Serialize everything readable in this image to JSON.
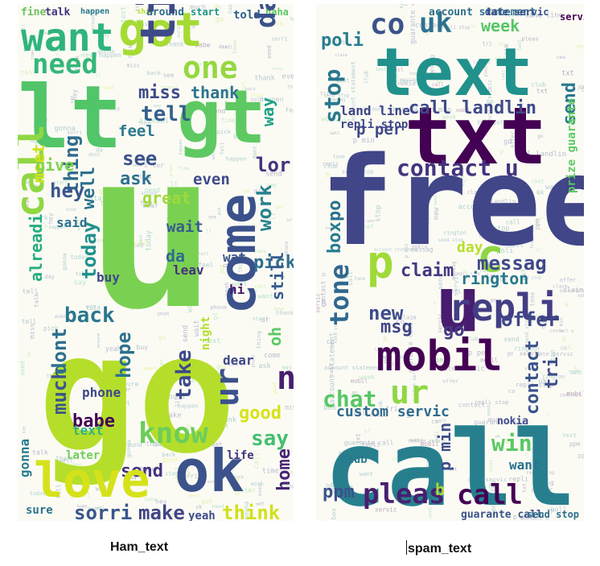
{
  "panels": [
    {
      "id": "ham",
      "caption": "Ham_text",
      "words": [
        {
          "text": "fine",
          "c": "#6fbf62",
          "r": 0
        },
        {
          "text": "talk",
          "c": "#44317f",
          "r": 0
        },
        {
          "text": "happen",
          "c": "#2a788e",
          "r": 0
        },
        {
          "text": "shit",
          "c": "#b8de29",
          "r": 0
        },
        {
          "text": "around",
          "c": "#2c6d8e",
          "r": 0
        },
        {
          "text": "start",
          "c": "#1f958b",
          "r": 0
        },
        {
          "text": "told",
          "c": "#2e5f8d",
          "r": 0
        },
        {
          "text": "haha",
          "c": "#5ec962",
          "r": 0
        },
        {
          "text": "want",
          "c": "#2fb47c",
          "r": 0
        },
        {
          "text": "got",
          "c": "#a6db34",
          "r": 0
        },
        {
          "text": "need",
          "c": "#35b779",
          "r": 0
        },
        {
          "text": "one",
          "c": "#95d840",
          "r": 0
        },
        {
          "text": "day",
          "c": "#3b518b",
          "r": 90
        },
        {
          "text": "lt",
          "c": "#52c569",
          "r": 0
        },
        {
          "text": "gt",
          "c": "#5ec962",
          "r": 0
        },
        {
          "text": "miss",
          "c": "#3e4a89",
          "r": 0
        },
        {
          "text": "thank",
          "c": "#2b748e",
          "r": 0
        },
        {
          "text": "time",
          "c": "#3e4989",
          "r": 90
        },
        {
          "text": "tell",
          "c": "#35608d",
          "r": 0
        },
        {
          "text": "call",
          "c": "#90d743",
          "r": 90
        },
        {
          "text": "meet",
          "c": "#d2e21b",
          "r": 90
        },
        {
          "text": "thing",
          "c": "#2f6c8e",
          "r": 90
        },
        {
          "text": "feel",
          "c": "#2a788e",
          "r": 0
        },
        {
          "text": "see",
          "c": "#3b528b",
          "r": 0
        },
        {
          "text": "ask",
          "c": "#2d708e",
          "r": 0
        },
        {
          "text": "even",
          "c": "#3e4a89",
          "r": 0
        },
        {
          "text": "lor",
          "c": "#46327e",
          "r": 0
        },
        {
          "text": "way",
          "c": "#1fa187",
          "r": 90
        },
        {
          "text": "give",
          "c": "#7fd34e",
          "r": 0
        },
        {
          "text": "hey",
          "c": "#3a548c",
          "r": 0
        },
        {
          "text": "u",
          "c": "#7ad151",
          "r": 0
        },
        {
          "text": "come",
          "c": "#3b518b",
          "r": 90
        },
        {
          "text": "work",
          "c": "#26828e",
          "r": 90
        },
        {
          "text": "today",
          "c": "#21908d",
          "r": 90
        },
        {
          "text": "well",
          "c": "#2c728e",
          "r": 90
        },
        {
          "text": "great",
          "c": "#9fda3a",
          "r": 0
        },
        {
          "text": "said",
          "c": "#2d718e",
          "r": 0
        },
        {
          "text": "alreadi",
          "c": "#27ad81",
          "r": 90
        },
        {
          "text": "wait",
          "c": "#365d8d",
          "r": 0
        },
        {
          "text": "wat",
          "c": "#3b528b",
          "r": 0
        },
        {
          "text": "pick",
          "c": "#2e6e8e",
          "r": 0
        },
        {
          "text": "da",
          "c": "#31688e",
          "r": 0
        },
        {
          "text": "buy",
          "c": "#3f4889",
          "r": 0
        },
        {
          "text": "leav",
          "c": "#46307e",
          "r": 0
        },
        {
          "text": "hi",
          "c": "#481a6c",
          "r": 0
        },
        {
          "text": "back",
          "c": "#2a778e",
          "r": 0
        },
        {
          "text": "still",
          "c": "#365c8d",
          "r": 90
        },
        {
          "text": "oh",
          "c": "#5cc863",
          "r": 90
        },
        {
          "text": "go",
          "c": "#b5de2b",
          "r": 0
        },
        {
          "text": "much",
          "c": "#3a548c",
          "r": 90
        },
        {
          "text": "dont",
          "c": "#2d708e",
          "r": 90
        },
        {
          "text": "babe",
          "c": "#440154",
          "r": 0
        },
        {
          "text": "hope",
          "c": "#2c728e",
          "r": 90
        },
        {
          "text": "take",
          "c": "#3e4a89",
          "r": 90
        },
        {
          "text": "dear",
          "c": "#3f4788",
          "r": 0
        },
        {
          "text": "ur",
          "c": "#3b518b",
          "r": 90
        },
        {
          "text": "n",
          "c": "#481f70",
          "r": 0
        },
        {
          "text": "good",
          "c": "#d8e219",
          "r": 0
        },
        {
          "text": "know",
          "c": "#6ccd5a",
          "r": 0
        },
        {
          "text": "say",
          "c": "#44bf70",
          "r": 0
        },
        {
          "text": "phone",
          "c": "#3f4889",
          "r": 0
        },
        {
          "text": "text",
          "c": "#31b57b",
          "r": 0
        },
        {
          "text": "send",
          "c": "#46337f",
          "r": 0
        },
        {
          "text": "home",
          "c": "#482475",
          "r": 90
        },
        {
          "text": "ok",
          "c": "#3b528b",
          "r": 0
        },
        {
          "text": "love",
          "c": "#d5e21a",
          "r": 0
        },
        {
          "text": "sorri",
          "c": "#39568c",
          "r": 0
        },
        {
          "text": "make",
          "c": "#414487",
          "r": 0
        },
        {
          "text": "think",
          "c": "#d0e11c",
          "r": 0
        },
        {
          "text": "yeah",
          "c": "#3d4e8a",
          "r": 0
        },
        {
          "text": "life",
          "c": "#453781",
          "r": 0
        },
        {
          "text": "later",
          "c": "#6ece58",
          "r": 0
        },
        {
          "text": "gonna",
          "c": "#287c8e",
          "r": 90
        },
        {
          "text": "sure",
          "c": "#2d718e",
          "r": 0
        },
        {
          "text": "night",
          "c": "#b2dd2d",
          "r": 90
        }
      ]
    },
    {
      "id": "spam",
      "caption": "spam_text",
      "words": [
        {
          "text": "account statement",
          "c": "#2e6e8e",
          "r": 0
        },
        {
          "text": "date servic",
          "c": "#3b528b",
          "r": 0
        },
        {
          "text": "servic",
          "c": "#440154",
          "r": 0
        },
        {
          "text": "poli",
          "c": "#287d8e",
          "r": 0
        },
        {
          "text": "co",
          "c": "#3b528b",
          "r": 0
        },
        {
          "text": "uk",
          "c": "#2c728e",
          "r": 0
        },
        {
          "text": "week",
          "c": "#56c667",
          "r": 0
        },
        {
          "text": "text",
          "c": "#21918c",
          "r": 0
        },
        {
          "text": "stop",
          "c": "#2a778e",
          "r": 90
        },
        {
          "text": "txt",
          "c": "#440154",
          "r": 0
        },
        {
          "text": "call landlin",
          "c": "#3e4a89",
          "r": 0
        },
        {
          "text": "land line",
          "c": "#404588",
          "r": 0
        },
        {
          "text": "repli stop",
          "c": "#3f4788",
          "r": 0
        },
        {
          "text": "p per",
          "c": "#3f4889",
          "r": 0
        },
        {
          "text": "send",
          "c": "#2a788e",
          "r": 90
        },
        {
          "text": "contact u",
          "c": "#46337f",
          "r": 0
        },
        {
          "text": "free",
          "c": "#404688",
          "r": 0
        },
        {
          "text": "box",
          "c": "#287c8e",
          "r": 90
        },
        {
          "text": "po",
          "c": "#2c718e",
          "r": 90
        },
        {
          "text": "p",
          "c": "#a0da39",
          "r": 0
        },
        {
          "text": "c",
          "c": "#8fd744",
          "r": 0
        },
        {
          "text": "messag",
          "c": "#3f4889",
          "r": 0
        },
        {
          "text": "claim",
          "c": "#453882",
          "r": 0
        },
        {
          "text": "rington",
          "c": "#2a788e",
          "r": 0
        },
        {
          "text": "tone",
          "c": "#31688e",
          "r": 90
        },
        {
          "text": "u",
          "c": "#481c6e",
          "r": 0
        },
        {
          "text": "repli",
          "c": "#433e85",
          "r": 0
        },
        {
          "text": "new",
          "c": "#3e4c8a",
          "r": 0
        },
        {
          "text": "msg",
          "c": "#3f4788",
          "r": 0
        },
        {
          "text": "go",
          "c": "#443a83",
          "r": 0
        },
        {
          "text": "offer",
          "c": "#3f4889",
          "r": 0
        },
        {
          "text": "mobil",
          "c": "#440154",
          "r": 0
        },
        {
          "text": "chat",
          "c": "#58c765",
          "r": 0
        },
        {
          "text": "ur",
          "c": "#90d743",
          "r": 0
        },
        {
          "text": "tri",
          "c": "#3e4c8a",
          "r": 90
        },
        {
          "text": "contact",
          "c": "#3a538b",
          "r": 90
        },
        {
          "text": "custom servic",
          "c": "#2f6b8e",
          "r": 0
        },
        {
          "text": "win",
          "c": "#5ac864",
          "r": 0
        },
        {
          "text": "call",
          "c": "#277f8e",
          "r": 0
        },
        {
          "text": "p min",
          "c": "#3d4e8a",
          "r": 90
        },
        {
          "text": "ppm",
          "c": "#3b528b",
          "r": 0
        },
        {
          "text": "pleas",
          "c": "#481f70",
          "r": 0
        },
        {
          "text": "b",
          "c": "#a5db36",
          "r": 0
        },
        {
          "text": "call",
          "c": "#440154",
          "r": 0
        },
        {
          "text": "club",
          "c": "#2a788e",
          "r": 0
        },
        {
          "text": "want",
          "c": "#2c728e",
          "r": 0
        },
        {
          "text": "guarante call",
          "c": "#3b528b",
          "r": 0
        },
        {
          "text": "send stop",
          "c": "#2e6e8e",
          "r": 0
        },
        {
          "text": "prize guarante",
          "c": "#5ec962",
          "r": 90
        },
        {
          "text": "nokia",
          "c": "#3e4a89",
          "r": 0
        },
        {
          "text": "day",
          "c": "#b8de29",
          "r": 0
        }
      ]
    }
  ]
}
